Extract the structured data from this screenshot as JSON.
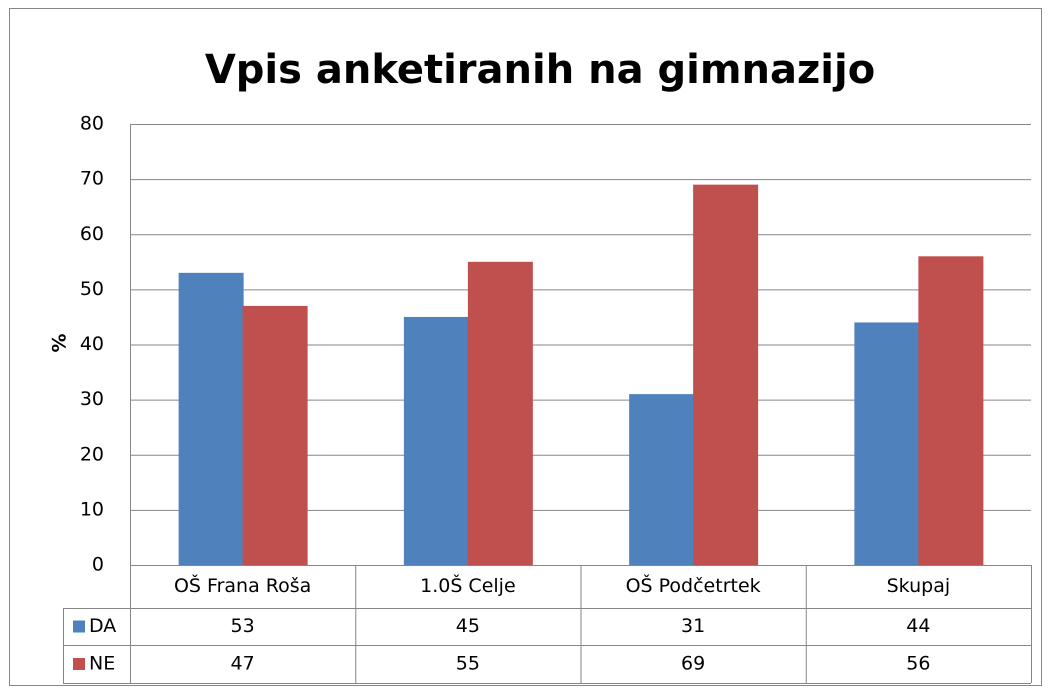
{
  "chart_data": {
    "type": "bar",
    "title": "Vpis anketiranih na gimnazijo",
    "y_label": "%",
    "categories": [
      "OŠ Frana Roša",
      "1.0Š Celje",
      "OŠ Podčetrtek",
      "Skupaj"
    ],
    "series": [
      {
        "name": "DA",
        "color": "#4f81bd",
        "values": [
          53,
          45,
          31,
          44
        ]
      },
      {
        "name": "NE",
        "color": "#c0504d",
        "values": [
          47,
          55,
          69,
          56
        ]
      }
    ],
    "ylim": [
      0,
      80
    ],
    "yticks": [
      0,
      10,
      20,
      30,
      40,
      50,
      60,
      70,
      80
    ],
    "grid": true,
    "data_table": true
  }
}
